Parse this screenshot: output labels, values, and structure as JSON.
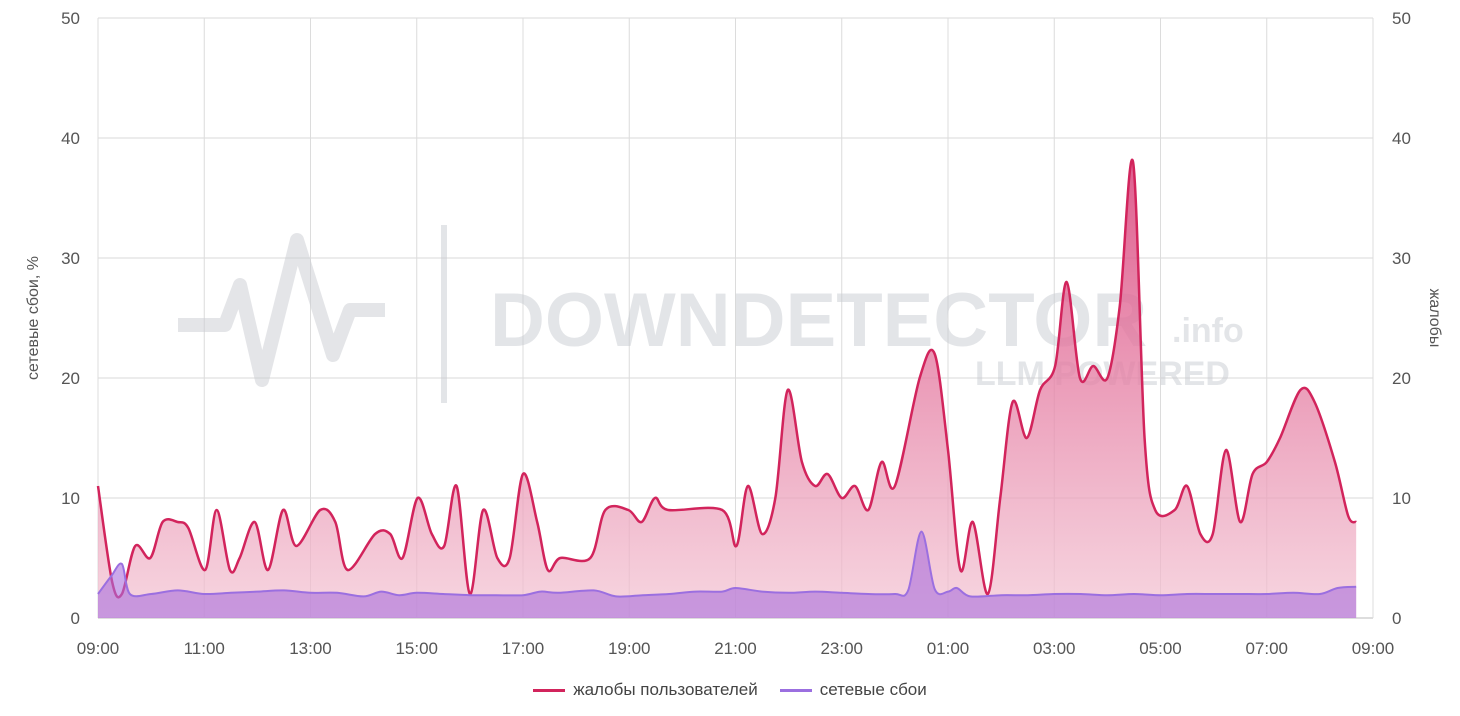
{
  "chart_data": {
    "type": "area",
    "xlabel": "",
    "ylabel_left": "сетевые сбои, %",
    "ylabel_right": "жалобы",
    "ylim_left": [
      0,
      50
    ],
    "ylim_right": [
      0,
      50
    ],
    "y_ticks": [
      "0",
      "10",
      "20",
      "30",
      "40",
      "50"
    ],
    "x_ticks": [
      "09:00",
      "11:00",
      "13:00",
      "15:00",
      "17:00",
      "19:00",
      "21:00",
      "23:00",
      "01:00",
      "03:00",
      "05:00",
      "07:00",
      "09:00"
    ],
    "x_range": [
      "09:00",
      "09:00 (+1 day)"
    ],
    "grid": true,
    "legend_position": "bottom",
    "series": [
      {
        "name": "жалобы пользователей",
        "color": "#d2245c",
        "axis": "right",
        "points": [
          [
            "09:00",
            11
          ],
          [
            "09:16",
            3
          ],
          [
            "09:27",
            2
          ],
          [
            "09:42",
            6
          ],
          [
            "09:59",
            5
          ],
          [
            "10:13",
            8
          ],
          [
            "10:30",
            8
          ],
          [
            "10:42",
            7.5
          ],
          [
            "11:01",
            4
          ],
          [
            "11:14",
            9
          ],
          [
            "11:29",
            4
          ],
          [
            "11:40",
            5
          ],
          [
            "11:57",
            8
          ],
          [
            "12:12",
            4
          ],
          [
            "12:29",
            9
          ],
          [
            "12:44",
            6
          ],
          [
            "13:11",
            9
          ],
          [
            "13:28",
            8
          ],
          [
            "13:42",
            4
          ],
          [
            "14:13",
            7
          ],
          [
            "14:30",
            7
          ],
          [
            "14:44",
            5
          ],
          [
            "15:01",
            10
          ],
          [
            "15:17",
            7
          ],
          [
            "15:31",
            6
          ],
          [
            "15:45",
            11
          ],
          [
            "16:00",
            2
          ],
          [
            "16:15",
            9
          ],
          [
            "16:31",
            5
          ],
          [
            "16:45",
            5
          ],
          [
            "17:00",
            12
          ],
          [
            "17:16",
            8
          ],
          [
            "17:28",
            4
          ],
          [
            "17:42",
            5
          ],
          [
            "18:16",
            5
          ],
          [
            "18:33",
            9
          ],
          [
            "18:59",
            9
          ],
          [
            "19:14",
            8
          ],
          [
            "19:29",
            10
          ],
          [
            "19:44",
            9
          ],
          [
            "20:45",
            9
          ],
          [
            "21:01",
            6
          ],
          [
            "21:14",
            11
          ],
          [
            "21:30",
            7
          ],
          [
            "21:45",
            10
          ],
          [
            "21:59",
            19
          ],
          [
            "22:15",
            13
          ],
          [
            "22:30",
            11
          ],
          [
            "22:44",
            12
          ],
          [
            "23:00",
            10
          ],
          [
            "23:15",
            11
          ],
          [
            "23:30",
            9
          ],
          [
            "23:45",
            13
          ],
          [
            "00:00",
            11
          ],
          [
            "00:28",
            20
          ],
          [
            "00:45",
            22
          ],
          [
            "01:00",
            14
          ],
          [
            "01:14",
            4
          ],
          [
            "01:28",
            8
          ],
          [
            "01:45",
            2
          ],
          [
            "01:59",
            10
          ],
          [
            "02:13",
            18
          ],
          [
            "02:29",
            15
          ],
          [
            "02:44",
            19
          ],
          [
            "03:01",
            21
          ],
          [
            "03:14",
            28
          ],
          [
            "03:29",
            20
          ],
          [
            "03:44",
            21
          ],
          [
            "04:00",
            20
          ],
          [
            "04:14",
            26
          ],
          [
            "04:29",
            38
          ],
          [
            "04:42",
            15
          ],
          [
            "04:54",
            9
          ],
          [
            "05:16",
            9
          ],
          [
            "05:30",
            11
          ],
          [
            "05:45",
            7
          ],
          [
            "05:59",
            7
          ],
          [
            "06:14",
            14
          ],
          [
            "06:30",
            8
          ],
          [
            "06:44",
            12
          ],
          [
            "07:00",
            13
          ],
          [
            "07:15",
            15
          ],
          [
            "07:38",
            19
          ],
          [
            "07:54",
            18
          ],
          [
            "08:17",
            13
          ],
          [
            "08:32",
            8.5
          ],
          [
            "08:41",
            8
          ]
        ]
      },
      {
        "name": "сетевые сбои",
        "color": "#9b6fe0",
        "axis": "left",
        "points": [
          [
            "09:00",
            2
          ],
          [
            "09:15",
            3.5
          ],
          [
            "09:27",
            4.5
          ],
          [
            "09:36",
            2
          ],
          [
            "10:00",
            2
          ],
          [
            "10:30",
            2.3
          ],
          [
            "11:00",
            2
          ],
          [
            "11:30",
            2.1
          ],
          [
            "12:00",
            2.2
          ],
          [
            "12:30",
            2.3
          ],
          [
            "13:00",
            2.1
          ],
          [
            "13:30",
            2.1
          ],
          [
            "14:00",
            1.8
          ],
          [
            "14:20",
            2.2
          ],
          [
            "14:40",
            1.9
          ],
          [
            "15:00",
            2.1
          ],
          [
            "15:30",
            2
          ],
          [
            "16:00",
            1.9
          ],
          [
            "16:30",
            1.9
          ],
          [
            "17:00",
            1.9
          ],
          [
            "17:20",
            2.2
          ],
          [
            "17:40",
            2.1
          ],
          [
            "18:20",
            2.3
          ],
          [
            "18:45",
            1.8
          ],
          [
            "19:15",
            1.9
          ],
          [
            "19:45",
            2
          ],
          [
            "20:15",
            2.2
          ],
          [
            "20:45",
            2.2
          ],
          [
            "21:00",
            2.5
          ],
          [
            "21:30",
            2.2
          ],
          [
            "22:00",
            2.1
          ],
          [
            "22:30",
            2.2
          ],
          [
            "23:00",
            2.1
          ],
          [
            "23:30",
            2
          ],
          [
            "00:00",
            2
          ],
          [
            "00:15",
            2.3
          ],
          [
            "00:30",
            7.2
          ],
          [
            "00:45",
            2.4
          ],
          [
            "01:00",
            2.2
          ],
          [
            "01:10",
            2.5
          ],
          [
            "01:25",
            1.8
          ],
          [
            "02:00",
            1.9
          ],
          [
            "02:30",
            1.9
          ],
          [
            "03:00",
            2
          ],
          [
            "03:30",
            2
          ],
          [
            "04:00",
            1.9
          ],
          [
            "04:30",
            2
          ],
          [
            "05:00",
            1.9
          ],
          [
            "05:30",
            2
          ],
          [
            "06:00",
            2
          ],
          [
            "06:30",
            2
          ],
          [
            "07:00",
            2
          ],
          [
            "07:30",
            2.1
          ],
          [
            "08:00",
            2
          ],
          [
            "08:20",
            2.5
          ],
          [
            "08:41",
            2.6
          ]
        ]
      }
    ]
  },
  "watermark": {
    "brand": "DOWNDETECTOR",
    "suffix": ".info",
    "tagline": "LLM POWERED"
  },
  "legend": [
    {
      "label": "жалобы пользователей",
      "color": "#d2245c"
    },
    {
      "label": "сетевые сбои",
      "color": "#9b6fe0"
    }
  ]
}
